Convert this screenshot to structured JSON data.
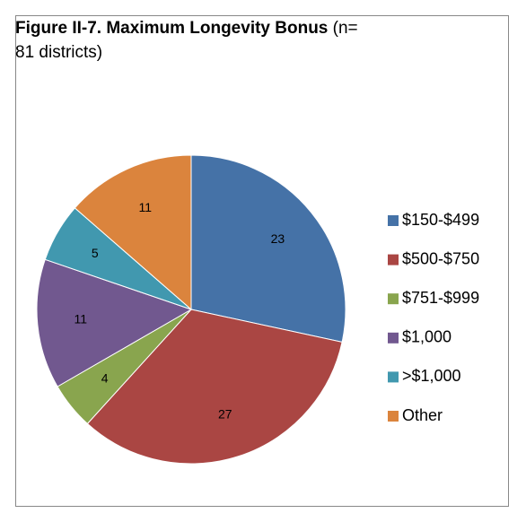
{
  "chart_data": {
    "type": "pie",
    "title": "Figure  II-7.  Maximum Longevity Bonus",
    "subtitle": "(n= 81 districts)",
    "categories": [
      "$150-$499",
      "$500-$750",
      "$751-$999",
      "$1,000",
      ">$1,000",
      "Other"
    ],
    "values": [
      23,
      27,
      4,
      11,
      5,
      11
    ],
    "colors": [
      "#4572a7",
      "#aa4643",
      "#89a54e",
      "#71588f",
      "#4198af",
      "#db843d"
    ],
    "legend": "right"
  }
}
